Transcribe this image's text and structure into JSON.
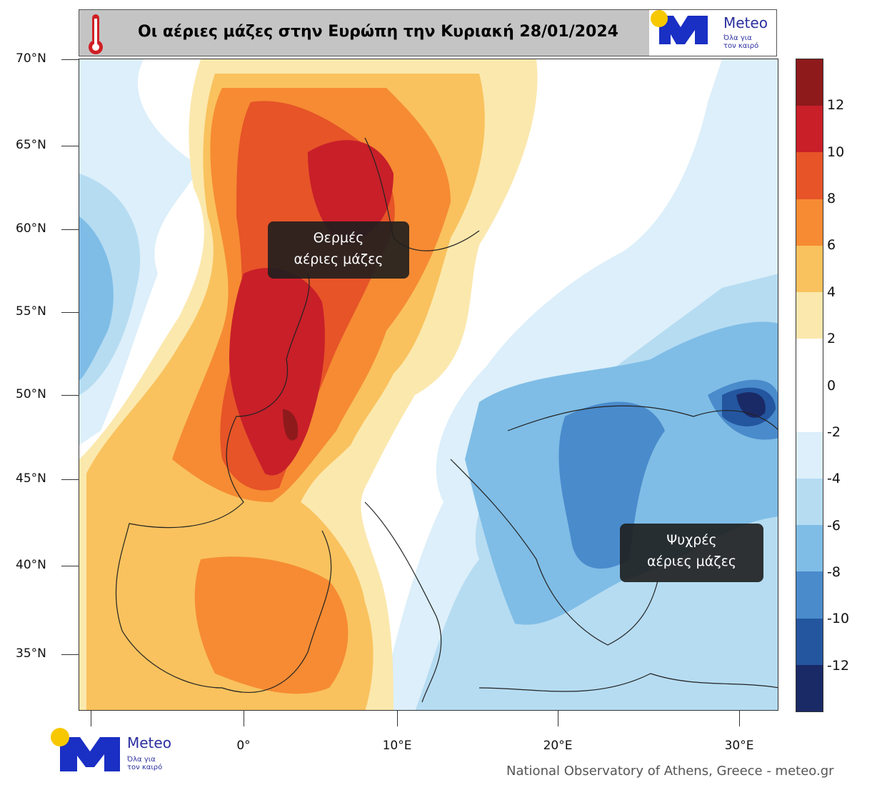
{
  "header": {
    "title": "Οι αέριες μάζες στην Ευρώπη την Κυριακή 28/01/2024",
    "thermometer_icon": "thermometer-icon"
  },
  "logo": {
    "brand": "Meteo",
    "tagline_1": "Όλα για",
    "tagline_2": "τον καιρό",
    "colors": {
      "blue": "#1a2fc4",
      "sun": "#f7c800"
    }
  },
  "axes": {
    "lat_labels": [
      "70°N",
      "65°N",
      "60°N",
      "55°N",
      "50°N",
      "45°N",
      "40°N",
      "35°N"
    ],
    "lon_labels": [
      "0°",
      "10°E",
      "20°E",
      "30°E"
    ]
  },
  "colorbar": {
    "labels": [
      "12",
      "10",
      "8",
      "6",
      "4",
      "2",
      "0",
      "-2",
      "-4",
      "-6",
      "-8",
      "-10",
      "-12"
    ],
    "colors": [
      "#8e1a1c",
      "#c81f29",
      "#e65428",
      "#f68b33",
      "#f9c25e",
      "#fbe8ad",
      "#ffffff",
      "#ffffff",
      "#dcefFA",
      "#b6dcf2",
      "#7fbde6",
      "#4a8bcc",
      "#24569f",
      "#1a2a66"
    ]
  },
  "annotations": {
    "warm": {
      "line1": "Θερμές",
      "line2": "αέριες μάζες"
    },
    "cold": {
      "line1": "Ψυχρές",
      "line2": "αέριες μάζες"
    }
  },
  "footer": {
    "credit": "National Observatory of Athens, Greece - meteo.gr"
  }
}
